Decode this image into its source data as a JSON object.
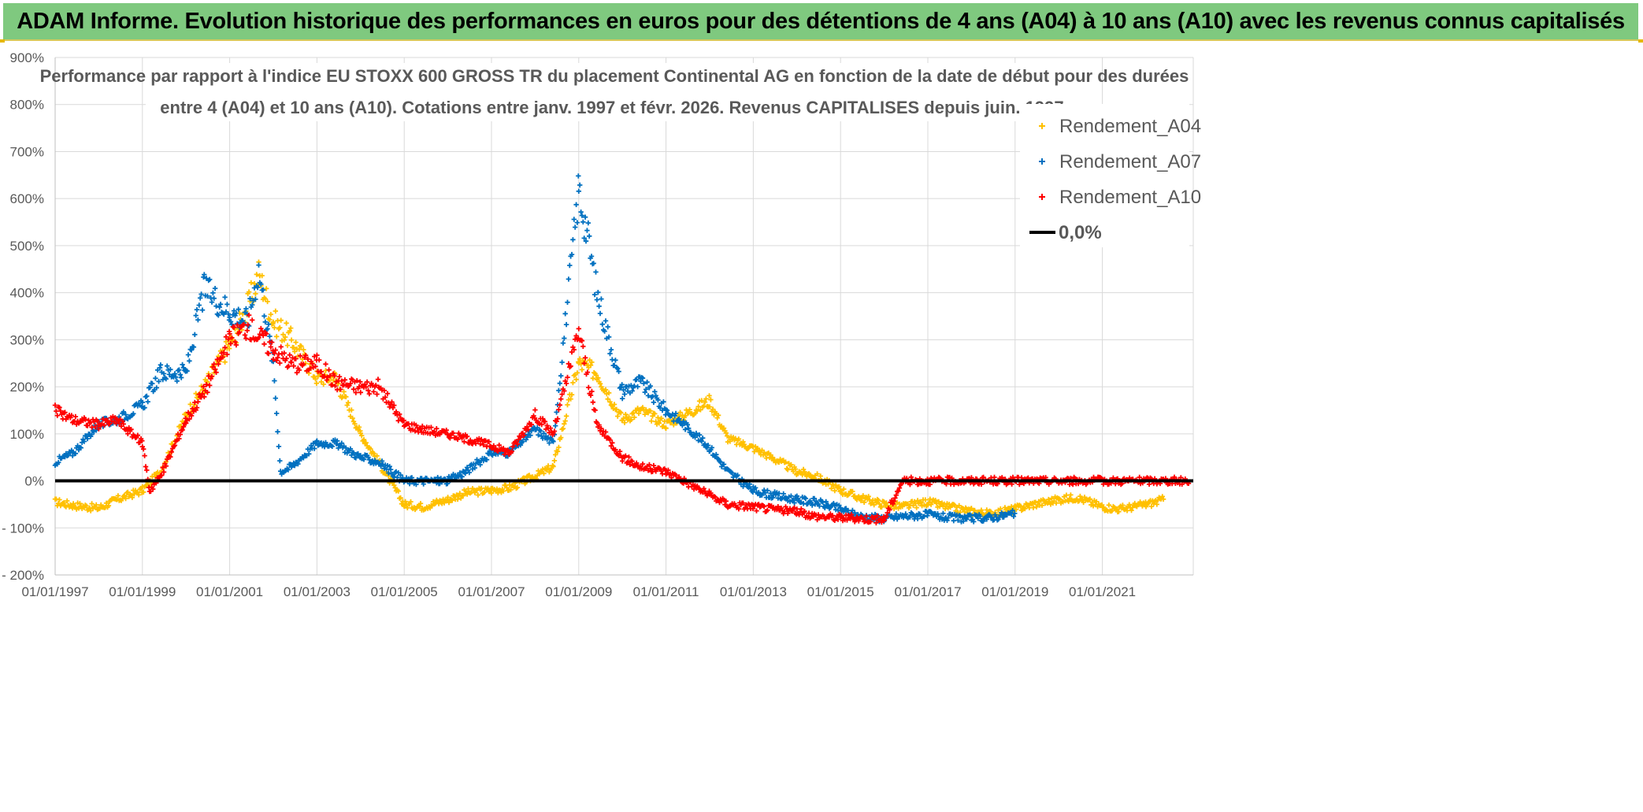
{
  "header": {
    "title": "ADAM Informe. Evolution historique des performances en euros pour des détentions de 4 ans (A04) à 10 ans (A10) avec les revenus connus capitalisés"
  },
  "chart_data": {
    "type": "scatter",
    "subtitle_line1": "Performance par rapport à l'indice EU STOXX 600 GROSS TR  du placement Continental AG en fonction de la date de début pour des durées",
    "subtitle_line2": "entre 4 (A04) et 10 ans (A10). Cotations entre janv. 1997 et févr. 2026. Revenus CAPITALISES depuis juin. 1997.",
    "xlabel": "",
    "ylabel": "",
    "xlim": [
      "01/01/1997",
      "01/02/2023"
    ],
    "ylim": [
      -200,
      900
    ],
    "y_ticks": [
      "900%",
      "800%",
      "700%",
      "600%",
      "500%",
      "400%",
      "300%",
      "200%",
      "100%",
      "0%",
      "- 100%",
      "- 200%"
    ],
    "x_ticks": [
      "01/01/1997",
      "01/01/1999",
      "01/01/2001",
      "01/01/2003",
      "01/01/2005",
      "01/01/2007",
      "01/01/2009",
      "01/01/2011",
      "01/01/2013",
      "01/01/2015",
      "01/01/2017",
      "01/01/2019",
      "01/01/2021"
    ],
    "grid": true,
    "legend_position": "top-right",
    "reference_line": {
      "name": "0,0%",
      "value": 0,
      "color": "#000000"
    },
    "series": [
      {
        "name": "Rendement_A04",
        "color": "#ffc000",
        "points": [
          [
            "1997-01",
            -45
          ],
          [
            "1997-06",
            -52
          ],
          [
            "1998-01",
            -58
          ],
          [
            "1998-06",
            -40
          ],
          [
            "1999-01",
            -20
          ],
          [
            "1999-06",
            20
          ],
          [
            "2000-01",
            140
          ],
          [
            "2000-06",
            200
          ],
          [
            "2001-01",
            290
          ],
          [
            "2001-06",
            370
          ],
          [
            "2001-09",
            440
          ],
          [
            "2002-01",
            340
          ],
          [
            "2002-06",
            300
          ],
          [
            "2003-01",
            220
          ],
          [
            "2003-06",
            220
          ],
          [
            "2004-01",
            100
          ],
          [
            "2004-06",
            40
          ],
          [
            "2005-01",
            -50
          ],
          [
            "2005-06",
            -55
          ],
          [
            "2006-01",
            -40
          ],
          [
            "2006-06",
            -25
          ],
          [
            "2007-01",
            -20
          ],
          [
            "2007-06",
            -15
          ],
          [
            "2008-01",
            10
          ],
          [
            "2008-06",
            30
          ],
          [
            "2009-01",
            250
          ],
          [
            "2009-06",
            230
          ],
          [
            "2010-01",
            130
          ],
          [
            "2010-06",
            150
          ],
          [
            "2011-01",
            120
          ],
          [
            "2011-06",
            140
          ],
          [
            "2012-01",
            170
          ],
          [
            "2012-06",
            90
          ],
          [
            "2013-01",
            70
          ],
          [
            "2013-06",
            50
          ],
          [
            "2014-01",
            20
          ],
          [
            "2014-06",
            10
          ],
          [
            "2015-01",
            -20
          ],
          [
            "2015-06",
            -35
          ],
          [
            "2016-01",
            -50
          ],
          [
            "2016-06",
            -55
          ],
          [
            "2017-01",
            -45
          ],
          [
            "2017-06",
            -55
          ],
          [
            "2018-01",
            -65
          ],
          [
            "2018-06",
            -70
          ],
          [
            "2019-01",
            -60
          ],
          [
            "2019-06",
            -50
          ],
          [
            "2020-01",
            -40
          ],
          [
            "2020-06",
            -35
          ],
          [
            "2021-01",
            -55
          ],
          [
            "2021-06",
            -60
          ],
          [
            "2022-01",
            -50
          ],
          [
            "2022-06",
            -40
          ]
        ]
      },
      {
        "name": "Rendement_A07",
        "color": "#0070c0",
        "points": [
          [
            "1997-01",
            40
          ],
          [
            "1997-06",
            60
          ],
          [
            "1998-01",
            120
          ],
          [
            "1998-06",
            130
          ],
          [
            "1999-01",
            160
          ],
          [
            "1999-06",
            230
          ],
          [
            "2000-01",
            230
          ],
          [
            "2000-06",
            410
          ],
          [
            "2001-01",
            360
          ],
          [
            "2001-06",
            340
          ],
          [
            "2001-09",
            450
          ],
          [
            "2002-01",
            250
          ],
          [
            "2002-03",
            20
          ],
          [
            "2002-06",
            30
          ],
          [
            "2003-01",
            80
          ],
          [
            "2003-06",
            80
          ],
          [
            "2004-01",
            50
          ],
          [
            "2004-06",
            40
          ],
          [
            "2005-01",
            0
          ],
          [
            "2005-06",
            0
          ],
          [
            "2006-01",
            0
          ],
          [
            "2006-06",
            20
          ],
          [
            "2007-01",
            60
          ],
          [
            "2007-06",
            60
          ],
          [
            "2008-01",
            110
          ],
          [
            "2008-06",
            80
          ],
          [
            "2009-01",
            620
          ],
          [
            "2009-03",
            540
          ],
          [
            "2009-06",
            400
          ],
          [
            "2010-01",
            190
          ],
          [
            "2010-06",
            210
          ],
          [
            "2011-01",
            150
          ],
          [
            "2011-06",
            120
          ],
          [
            "2012-01",
            70
          ],
          [
            "2012-06",
            20
          ],
          [
            "2013-01",
            -20
          ],
          [
            "2013-06",
            -30
          ],
          [
            "2014-01",
            -40
          ],
          [
            "2014-06",
            -45
          ],
          [
            "2015-01",
            -60
          ],
          [
            "2015-06",
            -75
          ],
          [
            "2016-01",
            -80
          ],
          [
            "2016-06",
            -75
          ],
          [
            "2017-01",
            -72
          ],
          [
            "2017-06",
            -78
          ],
          [
            "2018-01",
            -80
          ],
          [
            "2018-06",
            -78
          ],
          [
            "2019-01",
            -70
          ]
        ]
      },
      {
        "name": "Rendement_A10",
        "color": "#ff0000",
        "points": [
          [
            "1997-01",
            150
          ],
          [
            "1997-06",
            130
          ],
          [
            "1998-01",
            120
          ],
          [
            "1998-06",
            130
          ],
          [
            "1999-01",
            80
          ],
          [
            "1999-03",
            -20
          ],
          [
            "1999-06",
            10
          ],
          [
            "2000-01",
            130
          ],
          [
            "2000-06",
            190
          ],
          [
            "2001-01",
            300
          ],
          [
            "2001-06",
            330
          ],
          [
            "2002-01",
            280
          ],
          [
            "2002-06",
            250
          ],
          [
            "2003-01",
            250
          ],
          [
            "2003-06",
            210
          ],
          [
            "2004-01",
            200
          ],
          [
            "2004-06",
            200
          ],
          [
            "2005-01",
            120
          ],
          [
            "2005-06",
            110
          ],
          [
            "2006-01",
            100
          ],
          [
            "2006-06",
            90
          ],
          [
            "2007-01",
            75
          ],
          [
            "2007-06",
            60
          ],
          [
            "2008-01",
            140
          ],
          [
            "2008-06",
            100
          ],
          [
            "2009-01",
            320
          ],
          [
            "2009-06",
            120
          ],
          [
            "2010-01",
            50
          ],
          [
            "2010-06",
            30
          ],
          [
            "2011-01",
            20
          ],
          [
            "2011-06",
            0
          ],
          [
            "2012-01",
            -30
          ],
          [
            "2012-06",
            -50
          ],
          [
            "2013-01",
            -55
          ],
          [
            "2013-06",
            -60
          ],
          [
            "2014-01",
            -65
          ],
          [
            "2014-06",
            -75
          ],
          [
            "2015-01",
            -78
          ],
          [
            "2015-06",
            -80
          ],
          [
            "2016-01",
            -82
          ],
          [
            "2016-06",
            0
          ],
          [
            "2017-01",
            0
          ],
          [
            "2018-01",
            0
          ],
          [
            "2019-01",
            0
          ],
          [
            "2020-01",
            0
          ],
          [
            "2021-01",
            0
          ],
          [
            "2022-01",
            0
          ],
          [
            "2023-01",
            0
          ]
        ]
      }
    ]
  }
}
